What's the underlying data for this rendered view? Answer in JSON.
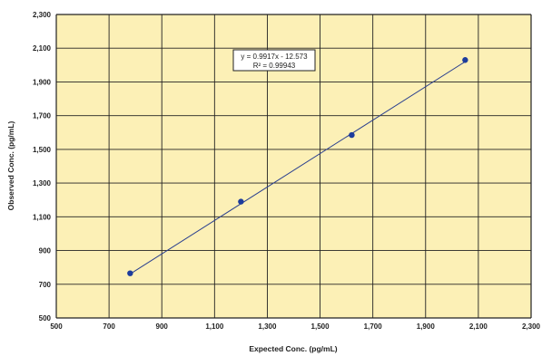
{
  "chart_data": {
    "type": "scatter",
    "title": "",
    "xlabel": "Expected Conc. (pg/mL)",
    "ylabel": "Observed Conc. (pg/mL)",
    "xlim": [
      500,
      2300
    ],
    "ylim": [
      500,
      2300
    ],
    "x_ticks": [
      500,
      700,
      900,
      1100,
      1300,
      1500,
      1700,
      1900,
      2100,
      2300
    ],
    "y_ticks": [
      500,
      700,
      900,
      1100,
      1300,
      1500,
      1700,
      1900,
      2100,
      2300
    ],
    "x_tick_labels": [
      "500",
      "700",
      "900",
      "1,100",
      "1,300",
      "1,500",
      "1,700",
      "1,900",
      "2,100",
      "2,300"
    ],
    "y_tick_labels": [
      "500",
      "700",
      "900",
      "1,100",
      "1,300",
      "1,500",
      "1,700",
      "1,900",
      "2,100",
      "2,300"
    ],
    "grid": true,
    "series": [
      {
        "x": [
          780,
          1200,
          1620,
          2050
        ],
        "y": [
          765,
          1190,
          1585,
          2030
        ]
      }
    ],
    "trendline": {
      "slope": 0.9917,
      "intercept": -12.573,
      "x_range": [
        780,
        2050
      ]
    },
    "annotation": {
      "lines": [
        "y = 0.9917x - 12.573",
        "R² = 0.99943"
      ]
    },
    "colors": {
      "plot_background": "#fcf0b6",
      "grid": "#222222",
      "marker": "#1d3c9c",
      "trendline": "#2a3f8f"
    }
  }
}
